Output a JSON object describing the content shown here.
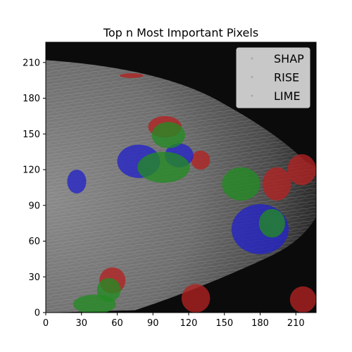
{
  "chart_data": {
    "type": "scatter",
    "title": "Top n Most Important Pixels",
    "xlabel": "",
    "ylabel": "",
    "xlim": [
      0,
      227
    ],
    "ylim": [
      0,
      227
    ],
    "xticks": [
      0,
      30,
      60,
      90,
      120,
      150,
      180,
      210
    ],
    "yticks": [
      0,
      30,
      60,
      90,
      120,
      150,
      180,
      210
    ],
    "grid": false,
    "legend_position": "top-right",
    "background": "grayscale mammogram image (breast tissue, oriented with chest wall on left)",
    "series": [
      {
        "name": "SHAP",
        "color": "#b22222",
        "regions": [
          {
            "cx": 100,
            "cy": 156,
            "rx": 14,
            "ry": 9
          },
          {
            "cx": 130,
            "cy": 128,
            "rx": 8,
            "ry": 8
          },
          {
            "cx": 194,
            "cy": 108,
            "rx": 12,
            "ry": 14
          },
          {
            "cx": 215,
            "cy": 120,
            "rx": 12,
            "ry": 13
          },
          {
            "cx": 56,
            "cy": 27,
            "rx": 11,
            "ry": 11
          },
          {
            "cx": 126,
            "cy": 12,
            "rx": 12,
            "ry": 12
          },
          {
            "cx": 216,
            "cy": 11,
            "rx": 11,
            "ry": 11
          },
          {
            "cx": 72,
            "cy": 199,
            "rx": 10,
            "ry": 2
          }
        ]
      },
      {
        "name": "RISE",
        "color": "#2222c8",
        "regions": [
          {
            "cx": 78,
            "cy": 127,
            "rx": 18,
            "ry": 14
          },
          {
            "cx": 26,
            "cy": 110,
            "rx": 8,
            "ry": 10
          },
          {
            "cx": 180,
            "cy": 70,
            "rx": 24,
            "ry": 21
          },
          {
            "cx": 112,
            "cy": 132,
            "rx": 12,
            "ry": 10
          }
        ]
      },
      {
        "name": "LIME",
        "color": "#228b22",
        "regions": [
          {
            "cx": 99,
            "cy": 122,
            "rx": 22,
            "ry": 13
          },
          {
            "cx": 103,
            "cy": 149,
            "rx": 14,
            "ry": 11
          },
          {
            "cx": 164,
            "cy": 108,
            "rx": 16,
            "ry": 14
          },
          {
            "cx": 190,
            "cy": 75,
            "rx": 11,
            "ry": 12
          },
          {
            "cx": 53,
            "cy": 19,
            "rx": 10,
            "ry": 10
          },
          {
            "cx": 41,
            "cy": 7,
            "rx": 18,
            "ry": 8
          }
        ]
      }
    ]
  }
}
